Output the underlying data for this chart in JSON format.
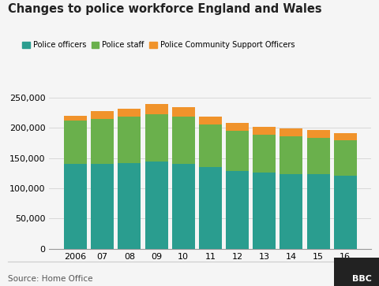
{
  "title": "Changes to police workforce England and Wales",
  "years": [
    "2006",
    "07",
    "08",
    "09",
    "10",
    "11",
    "12",
    "13",
    "14",
    "15",
    "16"
  ],
  "police_officers": [
    140000,
    141000,
    142000,
    144000,
    140000,
    135000,
    129000,
    126000,
    124000,
    123500,
    121000
  ],
  "police_staff": [
    72000,
    74000,
    76000,
    79000,
    78000,
    70000,
    66000,
    62000,
    62000,
    60000,
    58000
  ],
  "pcso": [
    8000,
    13000,
    14000,
    16000,
    16000,
    14000,
    13000,
    14000,
    13000,
    13000,
    12000
  ],
  "color_officers": "#2a9d8f",
  "color_staff": "#6ab04c",
  "color_pcso": "#f0932b",
  "ylim": [
    0,
    260000
  ],
  "yticks": [
    0,
    50000,
    100000,
    150000,
    200000,
    250000
  ],
  "source": "Source: Home Office",
  "bbc_logo": "BBC",
  "background": "#f5f5f5",
  "plot_bg": "#f5f5f5",
  "legend_labels": [
    "Police officers",
    "Police staff",
    "Police Community Support Officers"
  ],
  "bar_width": 0.85
}
